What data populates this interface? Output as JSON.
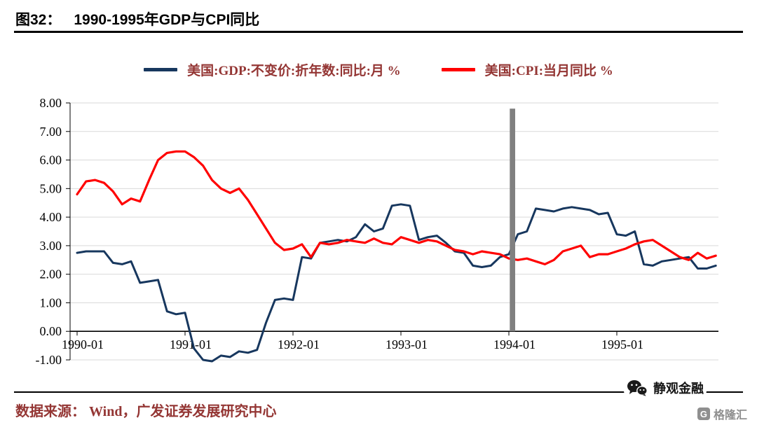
{
  "header": {
    "figure_label": "图32：",
    "title": "1990-1995年GDP与CPI同比"
  },
  "footer": {
    "source": "数据来源： Wind，广发证券发展研究中心"
  },
  "watermarks": {
    "wechat_name": "静观金融",
    "gelonghui_name": "格隆汇",
    "gelonghui_letter": "G"
  },
  "colors": {
    "gdp_line": "#17375E",
    "cpi_line": "#FF0000",
    "event_bar": "#808080",
    "grid": "#D9D9D9",
    "axis": "#000000",
    "tick_text": "#000000",
    "legend_text": "#943634",
    "title_text": "#000000"
  },
  "chart_data": {
    "type": "line",
    "title": "1990-1995年GDP与CPI同比",
    "xlabel": "",
    "ylabel": "%",
    "ylim": [
      -1,
      8
    ],
    "grid": true,
    "legend_position": "top",
    "x_unit": "month",
    "x_start": "1990-01",
    "x_end": "1995-12",
    "x_ticks": [
      "1990-01",
      "1991-01",
      "1992-01",
      "1993-01",
      "1994-01",
      "1995-01"
    ],
    "x_tick_months": [
      0,
      12,
      24,
      36,
      48,
      60
    ],
    "y_tick_labels": [
      "8.00",
      "7.00",
      "6.00",
      "5.00",
      "4.00",
      "3.00",
      "2.00",
      "1.00",
      "0.00",
      "-1.00"
    ],
    "series": [
      {
        "name": "美国:GDP:不变价:折年数:同比:月 %",
        "color": "#17375E",
        "stroke_width": 3,
        "values": [
          2.75,
          2.8,
          2.8,
          2.8,
          2.4,
          2.35,
          2.45,
          1.7,
          1.75,
          1.8,
          0.7,
          0.6,
          0.65,
          -0.6,
          -1.0,
          -1.05,
          -0.85,
          -0.9,
          -0.7,
          -0.75,
          -0.65,
          0.3,
          1.1,
          1.15,
          1.1,
          2.6,
          2.55,
          3.1,
          3.15,
          3.2,
          3.15,
          3.3,
          3.75,
          3.5,
          3.6,
          4.4,
          4.45,
          4.4,
          3.2,
          3.3,
          3.35,
          3.1,
          2.8,
          2.75,
          2.3,
          2.25,
          2.3,
          2.6,
          2.7,
          3.4,
          3.5,
          4.3,
          4.25,
          4.2,
          4.3,
          4.35,
          4.3,
          4.25,
          4.1,
          4.15,
          3.4,
          3.35,
          3.5,
          2.35,
          2.3,
          2.45,
          2.5,
          2.55,
          2.6,
          2.2,
          2.2,
          2.3
        ]
      },
      {
        "name": "美国:CPI:当月同比 %",
        "color": "#FF0000",
        "stroke_width": 3.2,
        "values": [
          4.8,
          5.25,
          5.3,
          5.2,
          4.9,
          4.45,
          4.65,
          4.55,
          5.3,
          6.0,
          6.25,
          6.3,
          6.3,
          6.1,
          5.8,
          5.3,
          5.0,
          4.85,
          5.0,
          4.6,
          4.1,
          3.6,
          3.1,
          2.85,
          2.9,
          3.05,
          2.6,
          3.1,
          3.05,
          3.1,
          3.2,
          3.15,
          3.1,
          3.25,
          3.1,
          3.05,
          3.3,
          3.2,
          3.1,
          3.2,
          3.15,
          3.0,
          2.85,
          2.8,
          2.7,
          2.8,
          2.75,
          2.7,
          2.55,
          2.5,
          2.55,
          2.45,
          2.35,
          2.5,
          2.8,
          2.9,
          3.0,
          2.6,
          2.7,
          2.7,
          2.8,
          2.9,
          3.05,
          3.15,
          3.2,
          3.0,
          2.8,
          2.6,
          2.5,
          2.75,
          2.55,
          2.65
        ]
      }
    ],
    "annotation": {
      "type": "vertical-bar",
      "x_month": 48.1,
      "width_months": 0.6,
      "y_from": 0,
      "y_to": 7.8,
      "color": "#808080"
    }
  }
}
